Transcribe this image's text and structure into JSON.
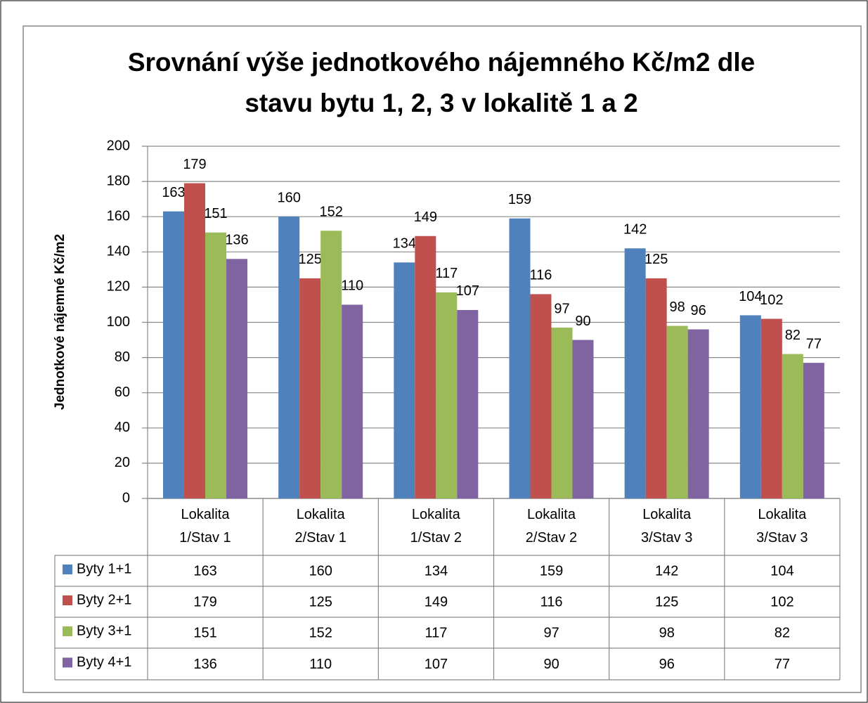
{
  "chart_data": {
    "type": "bar",
    "title": "Srovnání výše jednotkového nájemného Kč/m2 dle stavu bytu 1, 2, 3 v lokalitě 1 a 2",
    "y_label": "Jednotkové nájemné Kč/m2",
    "categories": [
      "Lokalita 1/Stav 1",
      "Lokalita 2/Stav 1",
      "Lokalita 1/Stav 2",
      "Lokalita 2/Stav 2",
      "Lokalita 3/Stav 3",
      "Lokalita 3/Stav 3"
    ],
    "series": [
      {
        "name": "Byty 1+1",
        "color": "#4f81bd",
        "values": [
          163,
          160,
          134,
          159,
          142,
          104
        ]
      },
      {
        "name": "Byty 2+1",
        "color": "#c0504d",
        "values": [
          179,
          125,
          149,
          116,
          125,
          102
        ]
      },
      {
        "name": "Byty 3+1",
        "color": "#9bbb59",
        "values": [
          151,
          152,
          117,
          97,
          98,
          82
        ]
      },
      {
        "name": "Byty 4+1",
        "color": "#8064a2",
        "values": [
          136,
          110,
          107,
          90,
          96,
          77
        ]
      }
    ],
    "ylim": [
      0,
      200
    ],
    "yticks": [
      0,
      20,
      40,
      60,
      80,
      100,
      120,
      140,
      160,
      180,
      200
    ],
    "grid": true
  }
}
